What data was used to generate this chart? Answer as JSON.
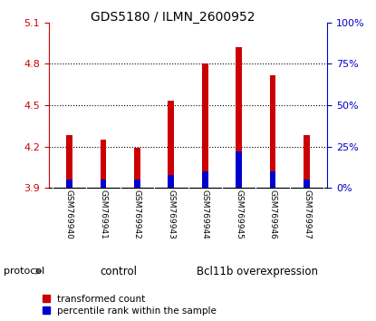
{
  "title": "GDS5180 / ILMN_2600952",
  "samples": [
    "GSM769940",
    "GSM769941",
    "GSM769942",
    "GSM769943",
    "GSM769944",
    "GSM769945",
    "GSM769946",
    "GSM769947"
  ],
  "transformed_counts": [
    4.28,
    4.25,
    4.19,
    4.53,
    4.8,
    4.92,
    4.72,
    4.28
  ],
  "percentile_ranks": [
    5,
    5,
    5,
    8,
    10,
    22,
    10,
    5
  ],
  "ylim_left": [
    3.9,
    5.1
  ],
  "ylim_right": [
    0,
    100
  ],
  "yticks_left": [
    3.9,
    4.2,
    4.5,
    4.8,
    5.1
  ],
  "yticks_right": [
    0,
    25,
    50,
    75,
    100
  ],
  "bar_base": 3.9,
  "bar_color": "#cc0000",
  "percentile_color": "#0000cc",
  "bar_width": 0.18,
  "control_label": "control",
  "overexpression_label": "Bcl11b overexpression",
  "protocol_label": "protocol",
  "legend_red_label": "transformed count",
  "legend_blue_label": "percentile rank within the sample",
  "control_color": "#aaffaa",
  "overexpression_color": "#44dd44",
  "left_axis_color": "#cc0000",
  "right_axis_color": "#0000cc",
  "label_bg_color": "#cccccc",
  "label_sep_color": "#888888"
}
